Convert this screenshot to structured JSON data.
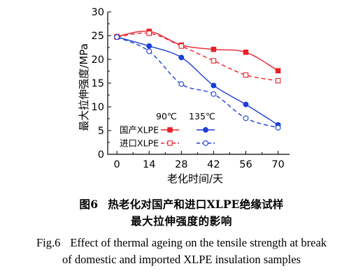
{
  "chart_data": {
    "type": "line",
    "xlabel": "老化时间/天",
    "ylabel": "最大拉伸强度/MPa",
    "x": [
      0,
      14,
      28,
      42,
      56,
      70
    ],
    "xlim": [
      -4,
      75
    ],
    "ylim": [
      0,
      30
    ],
    "yticks": [
      0,
      5,
      10,
      15,
      20,
      25,
      30
    ],
    "grid": false,
    "legend_placement": "lower-left",
    "legend_temps": [
      "90℃",
      "135℃"
    ],
    "series": [
      {
        "name": "国产XLPE 90℃",
        "group": "国产XLPE",
        "temp": "90℃",
        "color": "#e8202a",
        "marker": "square-filled",
        "dash": false,
        "values": [
          24.8,
          25.9,
          23.0,
          22.1,
          21.5,
          17.6
        ]
      },
      {
        "name": "进口XLPE 90℃",
        "group": "进口XLPE",
        "temp": "90℃",
        "color": "#e8202a",
        "marker": "square-open",
        "dash": true,
        "values": [
          24.7,
          25.5,
          22.8,
          19.7,
          16.7,
          15.5
        ]
      },
      {
        "name": "国产XLPE 135℃",
        "group": "国产XLPE",
        "temp": "135℃",
        "color": "#1c3fd6",
        "marker": "circle-filled",
        "dash": false,
        "values": [
          24.7,
          22.8,
          20.4,
          14.5,
          10.5,
          6.2
        ]
      },
      {
        "name": "进口XLPE 135℃",
        "group": "进口XLPE",
        "temp": "135℃",
        "color": "#1c3fd6",
        "marker": "circle-open",
        "dash": true,
        "values": [
          24.7,
          21.7,
          14.8,
          12.7,
          7.6,
          5.6
        ]
      }
    ]
  },
  "caption": {
    "zh_label": "图6",
    "zh_line1": "热老化对国产和进口XLPE绝缘试样",
    "zh_line2": "最大拉伸强度的影响",
    "en_label": "Fig.6",
    "en_line1": "Effect of thermal ageing on the tensile strength at break",
    "en_line2": "of domestic and imported XLPE insulation samples"
  }
}
